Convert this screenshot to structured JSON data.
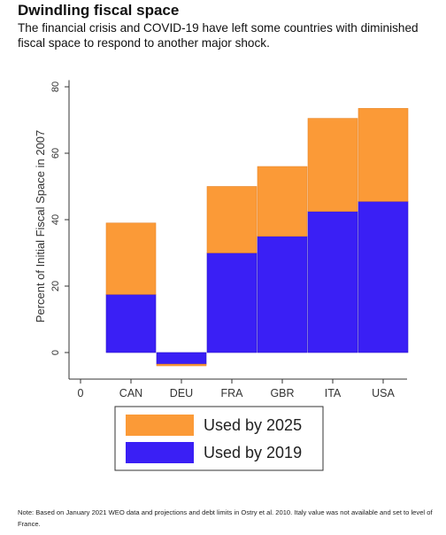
{
  "header": {
    "title": "Dwindling fiscal space",
    "subtitle": "The financial crisis and COVID-19 have left some countries with diminished fiscal space to respond to another major shock."
  },
  "note": "Note: Based on January 2021 WEO data and projections and debt limits in Ostry et al. 2010. Italy value was not available and set to level of France.",
  "chart_data": {
    "type": "bar",
    "stacked": true,
    "categories": [
      "CAN",
      "DEU",
      "FRA",
      "GBR",
      "ITA",
      "USA"
    ],
    "x_ticks": [
      "0"
    ],
    "series": [
      {
        "name": "Used by 2019",
        "color": "#3a1ff5",
        "values": [
          17.5,
          -3.5,
          30,
          35,
          42.5,
          45.5
        ]
      },
      {
        "name": "Used by 2025",
        "color": "#fb9a37",
        "values": [
          21.5,
          -0.5,
          20,
          21,
          28,
          28
        ]
      }
    ],
    "ylabel": "Percent of Initial Fiscal Space in 2007",
    "xlabel": "",
    "ylim": [
      -8,
      82
    ],
    "yticks": [
      0,
      20,
      40,
      60,
      80
    ],
    "legend_position": "bottom",
    "legend_order": [
      "Used by 2025",
      "Used by 2019"
    ],
    "grid": false
  }
}
